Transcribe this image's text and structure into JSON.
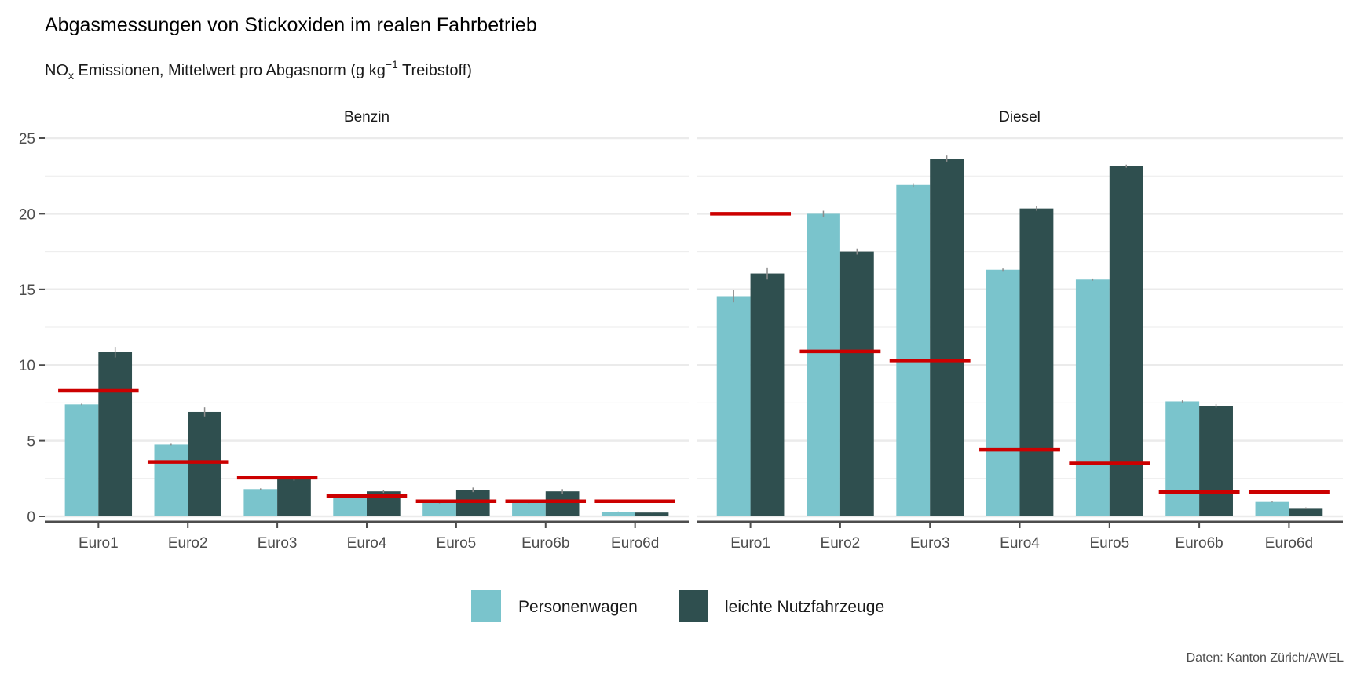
{
  "colors": {
    "Personenwagen": "#7AC4CC",
    "leichte Nutzfahrzeuge": "#2F4F4F",
    "limit": "#CC0000",
    "errorbar": "#8C8C8C",
    "grid": "#EBEBEB",
    "axis": "#4D4D4D"
  },
  "chart_data": {
    "type": "bar",
    "title": "Abgasmessungen von Stickoxiden im realen Fahrbetrieb",
    "subtitle": {
      "pre": "NO",
      "sub": "x",
      "mid": " Emissionen, Mittelwert pro Abgasnorm (g kg",
      "sup": "−1",
      "post": " Treibstoff)"
    },
    "caption": "Daten: Kanton Zürich/AWEL",
    "ylim": [
      0,
      25
    ],
    "yticks": [
      0,
      5,
      10,
      15,
      20,
      25
    ],
    "grid": true,
    "legend_position": "bottom",
    "categories": [
      "Euro1",
      "Euro2",
      "Euro3",
      "Euro4",
      "Euro5",
      "Euro6b",
      "Euro6d"
    ],
    "series_names": [
      "Personenwagen",
      "leichte Nutzfahrzeuge"
    ],
    "panels": [
      {
        "name": "Benzin",
        "series": [
          {
            "name": "Personenwagen",
            "values": [
              7.4,
              4.75,
              1.8,
              1.25,
              0.9,
              0.9,
              0.3
            ],
            "error": [
              0.05,
              0.05,
              0.05,
              0.05,
              0.05,
              0.05,
              0.02
            ]
          },
          {
            "name": "leichte Nutzfahrzeuge",
            "values": [
              10.85,
              6.9,
              2.45,
              1.65,
              1.75,
              1.65,
              0.25
            ],
            "error": [
              0.35,
              0.3,
              0.1,
              0.1,
              0.15,
              0.15,
              0.02
            ]
          }
        ],
        "limits": [
          8.3,
          3.6,
          2.55,
          1.35,
          1.0,
          1.0,
          1.0
        ]
      },
      {
        "name": "Diesel",
        "series": [
          {
            "name": "Personenwagen",
            "values": [
              14.55,
              20.0,
              21.9,
              16.3,
              15.65,
              7.6,
              0.95
            ],
            "error": [
              0.4,
              0.2,
              0.12,
              0.08,
              0.07,
              0.07,
              0.03
            ]
          },
          {
            "name": "leichte Nutzfahrzeuge",
            "values": [
              16.05,
              17.5,
              23.65,
              20.35,
              23.15,
              7.3,
              0.55
            ],
            "error": [
              0.4,
              0.2,
              0.2,
              0.15,
              0.1,
              0.12,
              0.04
            ]
          }
        ],
        "limits": [
          20.0,
          10.9,
          10.3,
          4.4,
          3.5,
          1.6,
          1.6
        ]
      }
    ]
  }
}
